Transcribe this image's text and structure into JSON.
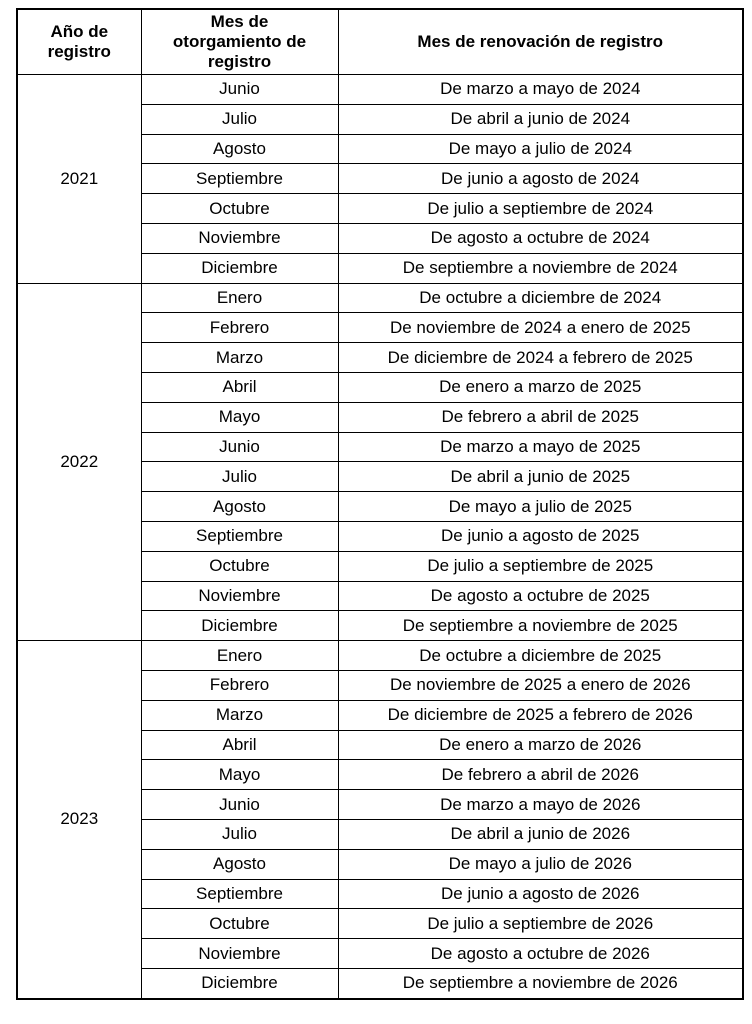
{
  "colors": {
    "border": "#000000",
    "text": "#000000",
    "background": "#ffffff"
  },
  "table": {
    "headers": {
      "year": "Año de registro",
      "grant_month": "Mes de otorgamiento de registro",
      "renewal_month": "Mes de renovación de registro"
    },
    "sections": [
      {
        "year": "2021",
        "rows": [
          {
            "month": "Junio",
            "renewal": "De marzo a mayo de 2024"
          },
          {
            "month": "Julio",
            "renewal": "De abril a junio de 2024"
          },
          {
            "month": "Agosto",
            "renewal": "De mayo a julio de 2024"
          },
          {
            "month": "Septiembre",
            "renewal": "De junio a agosto de 2024"
          },
          {
            "month": "Octubre",
            "renewal": "De julio a septiembre de 2024"
          },
          {
            "month": "Noviembre",
            "renewal": "De agosto a octubre de 2024"
          },
          {
            "month": "Diciembre",
            "renewal": "De septiembre a noviembre de 2024"
          }
        ]
      },
      {
        "year": "2022",
        "rows": [
          {
            "month": "Enero",
            "renewal": "De octubre a diciembre de 2024"
          },
          {
            "month": "Febrero",
            "renewal": "De noviembre de 2024 a enero de 2025"
          },
          {
            "month": "Marzo",
            "renewal": "De diciembre de 2024 a febrero de 2025"
          },
          {
            "month": "Abril",
            "renewal": "De enero a marzo de 2025"
          },
          {
            "month": "Mayo",
            "renewal": "De febrero a abril de 2025"
          },
          {
            "month": "Junio",
            "renewal": "De marzo a mayo de 2025"
          },
          {
            "month": "Julio",
            "renewal": "De abril a junio de 2025"
          },
          {
            "month": "Agosto",
            "renewal": "De mayo a julio de 2025"
          },
          {
            "month": "Septiembre",
            "renewal": "De junio a agosto de 2025"
          },
          {
            "month": "Octubre",
            "renewal": "De julio a septiembre de 2025"
          },
          {
            "month": "Noviembre",
            "renewal": "De agosto a octubre de 2025"
          },
          {
            "month": "Diciembre",
            "renewal": "De septiembre a noviembre de 2025"
          }
        ]
      },
      {
        "year": "2023",
        "rows": [
          {
            "month": "Enero",
            "renewal": "De octubre a diciembre de 2025"
          },
          {
            "month": "Febrero",
            "renewal": "De noviembre de 2025 a enero de 2026"
          },
          {
            "month": "Marzo",
            "renewal": "De diciembre de 2025 a febrero de 2026"
          },
          {
            "month": "Abril",
            "renewal": "De enero a marzo de 2026"
          },
          {
            "month": "Mayo",
            "renewal": "De febrero a abril de 2026"
          },
          {
            "month": "Junio",
            "renewal": "De marzo a mayo de 2026"
          },
          {
            "month": "Julio",
            "renewal": "De abril a junio de 2026"
          },
          {
            "month": "Agosto",
            "renewal": "De mayo a julio de 2026"
          },
          {
            "month": "Septiembre",
            "renewal": "De junio a agosto de 2026"
          },
          {
            "month": "Octubre",
            "renewal": "De julio a septiembre de 2026"
          },
          {
            "month": "Noviembre",
            "renewal": "De agosto a octubre de 2026"
          },
          {
            "month": "Diciembre",
            "renewal": "De septiembre a noviembre de 2026"
          }
        ]
      }
    ]
  }
}
